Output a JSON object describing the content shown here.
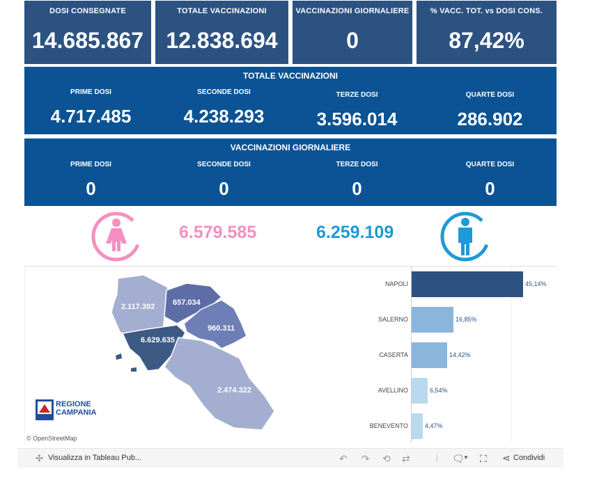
{
  "kpis": [
    {
      "title": "DOSI CONSEGNATE",
      "value": "14.685.867"
    },
    {
      "title": "TOTALE VACCINAZIONI",
      "value": "12.838.694"
    },
    {
      "title": "VACCINAZIONI GIORNALIERE",
      "value": "0"
    },
    {
      "title": "% VACC. TOT. vs DOSI CONS.",
      "value": "87,42%"
    }
  ],
  "totale": {
    "title": "TOTALE VACCINAZIONI",
    "cols": [
      {
        "label": "PRIME DOSI",
        "value": "4.717.485"
      },
      {
        "label": "SECONDE DOSI",
        "value": "4.238.293"
      },
      {
        "label": "TERZE DOSI",
        "value": "3.596.014"
      },
      {
        "label": "QUARTE DOSI",
        "value": "286.902"
      }
    ]
  },
  "giornaliere": {
    "title": "VACCINAZIONI GIORNALIERE",
    "cols": [
      {
        "label": "PRIME DOSI",
        "value": "0"
      },
      {
        "label": "SECONDE DOSI",
        "value": "0"
      },
      {
        "label": "TERZE DOSI",
        "value": "0"
      },
      {
        "label": "QUARTE DOSI",
        "value": "0"
      }
    ]
  },
  "gender": {
    "female": "6.579.585",
    "male": "6.259.109",
    "female_color": "#f48fc1",
    "male_color": "#1e9ad6"
  },
  "map": {
    "regions": [
      {
        "name": "caserta",
        "value": "2.117.392"
      },
      {
        "name": "benevento",
        "value": "657.034"
      },
      {
        "name": "avellino",
        "value": "960.311"
      },
      {
        "name": "napoli",
        "value": "6.629.635"
      },
      {
        "name": "salerno",
        "value": "2.474.322"
      }
    ],
    "logo_line1": "REGIONE",
    "logo_line2": "CAMPANIA",
    "attribution": "© OpenStreetMap"
  },
  "chart_data": {
    "type": "bar",
    "orientation": "horizontal",
    "categories": [
      "NAPOLI",
      "SALERNO",
      "CASERTA",
      "AVELLINO",
      "BENEVENTO"
    ],
    "values": [
      45.14,
      16.85,
      14.42,
      6.54,
      4.47
    ],
    "labels": [
      "45,14%",
      "16,85%",
      "14,42%",
      "6,54%",
      "4,47%"
    ],
    "colors": [
      "#2c5282",
      "#8ab6dd",
      "#8ab6dd",
      "#b9d9ef",
      "#b9d9ef"
    ]
  },
  "toolbar": {
    "view_label": "Visualizza in Tableau Pub...",
    "share_label": "Condividi"
  }
}
